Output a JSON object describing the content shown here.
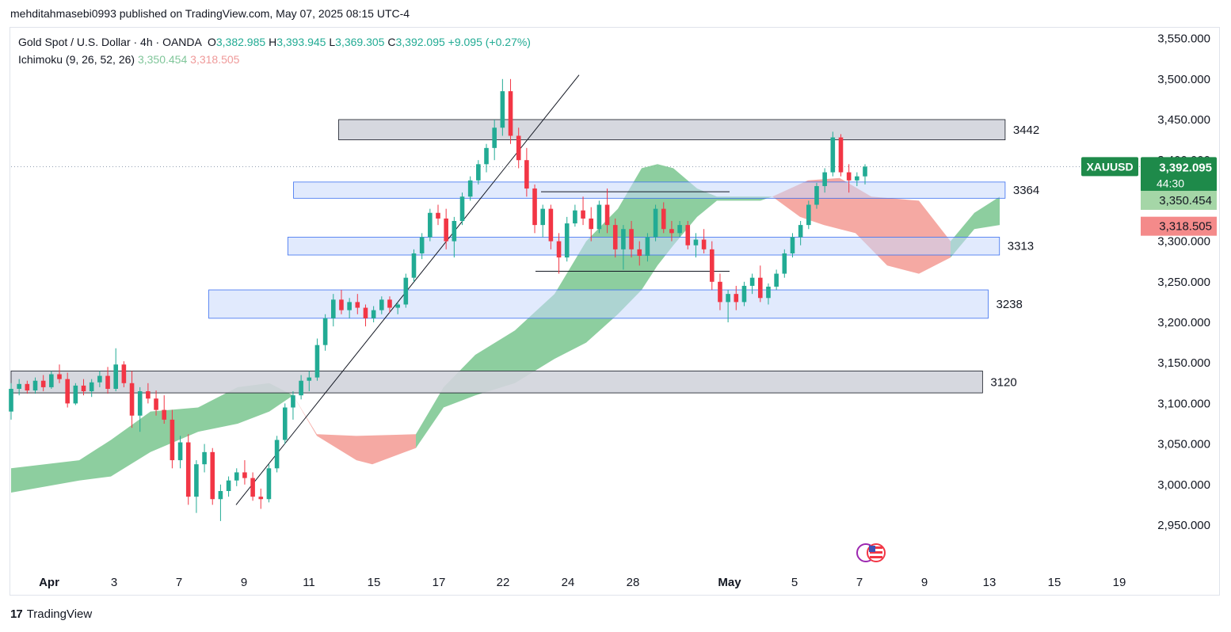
{
  "header": {
    "published_line": "mehditahmasebi0993 published on TradingView.com, May 07, 2025 08:15 UTC-4"
  },
  "legend": {
    "symbol": "Gold Spot / U.S. Dollar · 4h · OANDA",
    "o_key": "O",
    "o_val": "3,382.985",
    "h_key": "H",
    "h_val": "3,393.945",
    "l_key": "L",
    "l_val": "3,369.305",
    "c_key": "C",
    "c_val": "3,392.095",
    "change": "+9.095 (+0.27%)",
    "indicator": "Ichimoku (9, 26, 52, 26)",
    "indicator_v1": "3,350.454",
    "indicator_v2": "3,318.505"
  },
  "footer": {
    "brand": "TradingView",
    "logo_text": "17"
  },
  "colors": {
    "up": "#22ab94",
    "down": "#f23645",
    "cloud_up": "#81c995",
    "cloud_down": "#f4a099",
    "zone_blue": "#c9d9fb",
    "zone_blue_border": "#3a6ff0",
    "zone_grey": "#d1d4dc",
    "axis_text": "#131722",
    "price_badge": "#22ab94"
  },
  "icons": {
    "flag": "us-flag-events-icon"
  },
  "chart_data": {
    "type": "candlestick",
    "symbol": "XAUUSD",
    "timeframe": "4h",
    "ylim": [
      2915,
      3575
    ],
    "y_ticks": [
      "3,550.000",
      "3,500.000",
      "3,450.000",
      "3,400.000",
      "3,350.000",
      "3,300.000",
      "3,250.000",
      "3,200.000",
      "3,150.000",
      "3,100.000",
      "3,050.000",
      "3,000.000",
      "2,950.000"
    ],
    "x_ticks": [
      "Apr",
      "3",
      "7",
      "9",
      "11",
      "15",
      "17",
      "22",
      "24",
      "28",
      "May",
      "5",
      "7",
      "9",
      "13",
      "15",
      "19"
    ],
    "last_price_label": "XAUUSD",
    "last_price": "3,392.095",
    "countdown": "44:30",
    "tenkan_label": "3,350.454",
    "kijun_label": "3,318.505",
    "zones": [
      {
        "label": "3442",
        "low": 3425,
        "high": 3450,
        "kind": "grey",
        "from": 0.29,
        "to": 0.88
      },
      {
        "label": "3364",
        "low": 3353,
        "high": 3373,
        "kind": "blue",
        "from": 0.25,
        "to": 0.88
      },
      {
        "label": "3313",
        "low": 3283,
        "high": 3305,
        "kind": "blue",
        "from": 0.245,
        "to": 0.875
      },
      {
        "label": "3238",
        "low": 3205,
        "high": 3240,
        "kind": "blue",
        "from": 0.175,
        "to": 0.865
      },
      {
        "label": "3120",
        "low": 3113,
        "high": 3140,
        "kind": "grey",
        "from": 0,
        "to": 0.86
      }
    ],
    "candles": [
      [
        3090,
        3125,
        3080,
        3118
      ],
      [
        3118,
        3130,
        3110,
        3124
      ],
      [
        3124,
        3128,
        3112,
        3116
      ],
      [
        3116,
        3132,
        3112,
        3128
      ],
      [
        3128,
        3135,
        3115,
        3120
      ],
      [
        3120,
        3140,
        3118,
        3136
      ],
      [
        3136,
        3148,
        3125,
        3130
      ],
      [
        3130,
        3138,
        3095,
        3100
      ],
      [
        3100,
        3125,
        3098,
        3122
      ],
      [
        3122,
        3130,
        3110,
        3115
      ],
      [
        3115,
        3130,
        3108,
        3126
      ],
      [
        3126,
        3140,
        3120,
        3134
      ],
      [
        3134,
        3145,
        3112,
        3118
      ],
      [
        3118,
        3168,
        3115,
        3148
      ],
      [
        3148,
        3152,
        3120,
        3125
      ],
      [
        3125,
        3140,
        3070,
        3085
      ],
      [
        3085,
        3120,
        3065,
        3115
      ],
      [
        3115,
        3125,
        3100,
        3106
      ],
      [
        3106,
        3116,
        3085,
        3092
      ],
      [
        3092,
        3110,
        3075,
        3080
      ],
      [
        3080,
        3092,
        3020,
        3030
      ],
      [
        3030,
        3060,
        3020,
        3052
      ],
      [
        3052,
        3062,
        2975,
        2985
      ],
      [
        2985,
        3030,
        2965,
        3025
      ],
      [
        3025,
        3050,
        3015,
        3040
      ],
      [
        3040,
        3045,
        2975,
        2982
      ],
      [
        2982,
        3000,
        2955,
        2992
      ],
      [
        2992,
        3010,
        2985,
        3005
      ],
      [
        3005,
        3020,
        2998,
        3015
      ],
      [
        3015,
        3030,
        3000,
        3008
      ],
      [
        3008,
        3015,
        2980,
        2985
      ],
      [
        2985,
        2995,
        2970,
        2982
      ],
      [
        2982,
        3025,
        2978,
        3020
      ],
      [
        3020,
        3060,
        3015,
        3055
      ],
      [
        3055,
        3100,
        3050,
        3095
      ],
      [
        3095,
        3115,
        3080,
        3110
      ],
      [
        3110,
        3135,
        3105,
        3128
      ],
      [
        3128,
        3140,
        3115,
        3132
      ],
      [
        3132,
        3180,
        3128,
        3172
      ],
      [
        3172,
        3210,
        3165,
        3205
      ],
      [
        3205,
        3235,
        3195,
        3228
      ],
      [
        3228,
        3240,
        3210,
        3215
      ],
      [
        3215,
        3230,
        3205,
        3225
      ],
      [
        3225,
        3235,
        3210,
        3218
      ],
      [
        3218,
        3222,
        3195,
        3205
      ],
      [
        3205,
        3220,
        3200,
        3215
      ],
      [
        3215,
        3232,
        3210,
        3228
      ],
      [
        3228,
        3232,
        3212,
        3218
      ],
      [
        3218,
        3225,
        3210,
        3222
      ],
      [
        3222,
        3260,
        3218,
        3255
      ],
      [
        3255,
        3290,
        3250,
        3285
      ],
      [
        3285,
        3310,
        3278,
        3305
      ],
      [
        3305,
        3340,
        3300,
        3335
      ],
      [
        3335,
        3345,
        3320,
        3328
      ],
      [
        3328,
        3340,
        3290,
        3300
      ],
      [
        3300,
        3330,
        3280,
        3325
      ],
      [
        3325,
        3360,
        3320,
        3355
      ],
      [
        3355,
        3380,
        3350,
        3375
      ],
      [
        3375,
        3400,
        3370,
        3395
      ],
      [
        3395,
        3420,
        3385,
        3415
      ],
      [
        3415,
        3450,
        3400,
        3440
      ],
      [
        3440,
        3500,
        3430,
        3485
      ],
      [
        3485,
        3500,
        3420,
        3430
      ],
      [
        3430,
        3440,
        3390,
        3400
      ],
      [
        3400,
        3415,
        3355,
        3365
      ],
      [
        3365,
        3370,
        3310,
        3320
      ],
      [
        3320,
        3345,
        3305,
        3340
      ],
      [
        3340,
        3345,
        3290,
        3300
      ],
      [
        3300,
        3310,
        3260,
        3280
      ],
      [
        3280,
        3330,
        3275,
        3322
      ],
      [
        3322,
        3345,
        3318,
        3338
      ],
      [
        3338,
        3355,
        3320,
        3328
      ],
      [
        3328,
        3342,
        3300,
        3315
      ],
      [
        3315,
        3350,
        3310,
        3345
      ],
      [
        3345,
        3365,
        3310,
        3320
      ],
      [
        3320,
        3328,
        3280,
        3290
      ],
      [
        3290,
        3320,
        3265,
        3315
      ],
      [
        3315,
        3325,
        3280,
        3290
      ],
      [
        3290,
        3300,
        3270,
        3282
      ],
      [
        3282,
        3310,
        3275,
        3305
      ],
      [
        3305,
        3345,
        3300,
        3340
      ],
      [
        3340,
        3348,
        3310,
        3315
      ],
      [
        3315,
        3325,
        3300,
        3310
      ],
      [
        3310,
        3325,
        3305,
        3320
      ],
      [
        3320,
        3325,
        3290,
        3295
      ],
      [
        3295,
        3310,
        3280,
        3302
      ],
      [
        3302,
        3315,
        3285,
        3290
      ],
      [
        3290,
        3300,
        3240,
        3250
      ],
      [
        3250,
        3260,
        3215,
        3225
      ],
      [
        3225,
        3240,
        3200,
        3235
      ],
      [
        3235,
        3245,
        3215,
        3225
      ],
      [
        3225,
        3250,
        3220,
        3245
      ],
      [
        3245,
        3260,
        3235,
        3255
      ],
      [
        3255,
        3270,
        3225,
        3230
      ],
      [
        3230,
        3248,
        3222,
        3244
      ],
      [
        3244,
        3265,
        3240,
        3260
      ],
      [
        3260,
        3290,
        3255,
        3285
      ],
      [
        3285,
        3310,
        3280,
        3305
      ],
      [
        3305,
        3325,
        3295,
        3320
      ],
      [
        3320,
        3350,
        3315,
        3345
      ],
      [
        3345,
        3372,
        3340,
        3368
      ],
      [
        3368,
        3390,
        3360,
        3385
      ],
      [
        3385,
        3435,
        3380,
        3428
      ],
      [
        3428,
        3432,
        3380,
        3385
      ],
      [
        3385,
        3395,
        3360,
        3375
      ],
      [
        3375,
        3385,
        3368,
        3380
      ],
      [
        3380,
        3395,
        3370,
        3392
      ]
    ]
  }
}
